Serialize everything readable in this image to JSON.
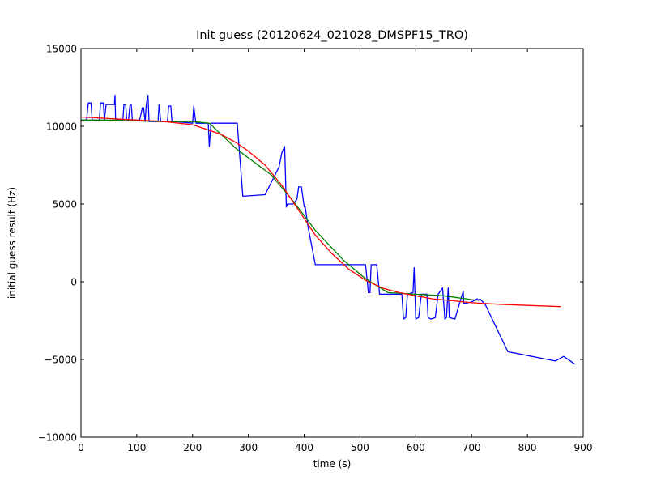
{
  "chart_data": {
    "type": "line",
    "title": "Init guess (20120624_021028_DMSPF15_TRO)",
    "xlabel": "time (s)",
    "ylabel": "initial guess result (Hz)",
    "xlim": [
      0,
      900
    ],
    "ylim": [
      -10000,
      15000
    ],
    "xticks": [
      0,
      100,
      200,
      300,
      400,
      500,
      600,
      700,
      800,
      900
    ],
    "yticks": [
      -10000,
      -5000,
      0,
      5000,
      10000,
      15000
    ],
    "xtick_labels": [
      "0",
      "100",
      "200",
      "300",
      "400",
      "500",
      "600",
      "700",
      "800",
      "900"
    ],
    "ytick_labels": [
      "−10000",
      "−5000",
      "0",
      "5000",
      "10000",
      "15000"
    ],
    "grid": false,
    "legend": "none",
    "series": [
      {
        "color": "#0000ff",
        "x": [
          0,
          10,
          13,
          18,
          20,
          23,
          33,
          35,
          40,
          42,
          45,
          60,
          61,
          62,
          75,
          77,
          80,
          82,
          85,
          88,
          90,
          92,
          95,
          105,
          110,
          112,
          115,
          117,
          120,
          122,
          125,
          138,
          140,
          143,
          155,
          157,
          161,
          163,
          170,
          200,
          202,
          206,
          210,
          228,
          230,
          233,
          280,
          290,
          330,
          355,
          360,
          365,
          368,
          370,
          375,
          380,
          387,
          390,
          395,
          400,
          402,
          407,
          420,
          445,
          510,
          515,
          518,
          520,
          525,
          530,
          535,
          575,
          578,
          582,
          585,
          595,
          597,
          600,
          605,
          610,
          620,
          622,
          627,
          635,
          640,
          648,
          652,
          655,
          658,
          660,
          670,
          685,
          686,
          700,
          710,
          712,
          715,
          725,
          765,
          850,
          865,
          885
        ],
        "y": [
          10400,
          10400,
          11500,
          11500,
          10400,
          10400,
          10400,
          11500,
          11500,
          10400,
          11400,
          11400,
          12000,
          10400,
          10400,
          11400,
          11400,
          10400,
          10400,
          11400,
          11400,
          10400,
          10400,
          10400,
          11200,
          11200,
          10300,
          11400,
          12000,
          10300,
          10300,
          10300,
          11400,
          10300,
          10300,
          11300,
          11300,
          10300,
          10300,
          10200,
          11300,
          10200,
          10200,
          10200,
          8700,
          10200,
          10200,
          5500,
          5600,
          7400,
          8300,
          8700,
          4800,
          5000,
          5000,
          5000,
          5300,
          6100,
          6100,
          4800,
          4800,
          3500,
          1100,
          1100,
          1100,
          -700,
          -700,
          1100,
          1100,
          1100,
          -800,
          -800,
          -2400,
          -2300,
          -800,
          -700,
          900,
          -2400,
          -2300,
          -800,
          -800,
          -2300,
          -2400,
          -2300,
          -800,
          -400,
          -2400,
          -2300,
          -400,
          -2300,
          -2400,
          -600,
          -1400,
          -1300,
          -1100,
          -1200,
          -1100,
          -1500,
          -4500,
          -5100,
          -4800,
          -5300
        ]
      },
      {
        "color": "#008000",
        "x": [
          0,
          50,
          100,
          150,
          200,
          230,
          280,
          340,
          380,
          420,
          470,
          510,
          550,
          600,
          650,
          710
        ],
        "y": [
          10400,
          10400,
          10350,
          10300,
          10300,
          10200,
          8500,
          6900,
          5200,
          3300,
          1400,
          200,
          -700,
          -800,
          -900,
          -1200
        ]
      },
      {
        "color": "#ff0000",
        "x": [
          0,
          50,
          100,
          150,
          200,
          250,
          280,
          300,
          330,
          360,
          390,
          420,
          450,
          480,
          510,
          540,
          570,
          600,
          630,
          660,
          700,
          750,
          800,
          860
        ],
        "y": [
          10600,
          10500,
          10400,
          10300,
          10100,
          9500,
          8900,
          8400,
          7500,
          6200,
          4600,
          3000,
          1800,
          800,
          100,
          -400,
          -700,
          -900,
          -1100,
          -1200,
          -1350,
          -1450,
          -1520,
          -1600
        ]
      }
    ]
  }
}
